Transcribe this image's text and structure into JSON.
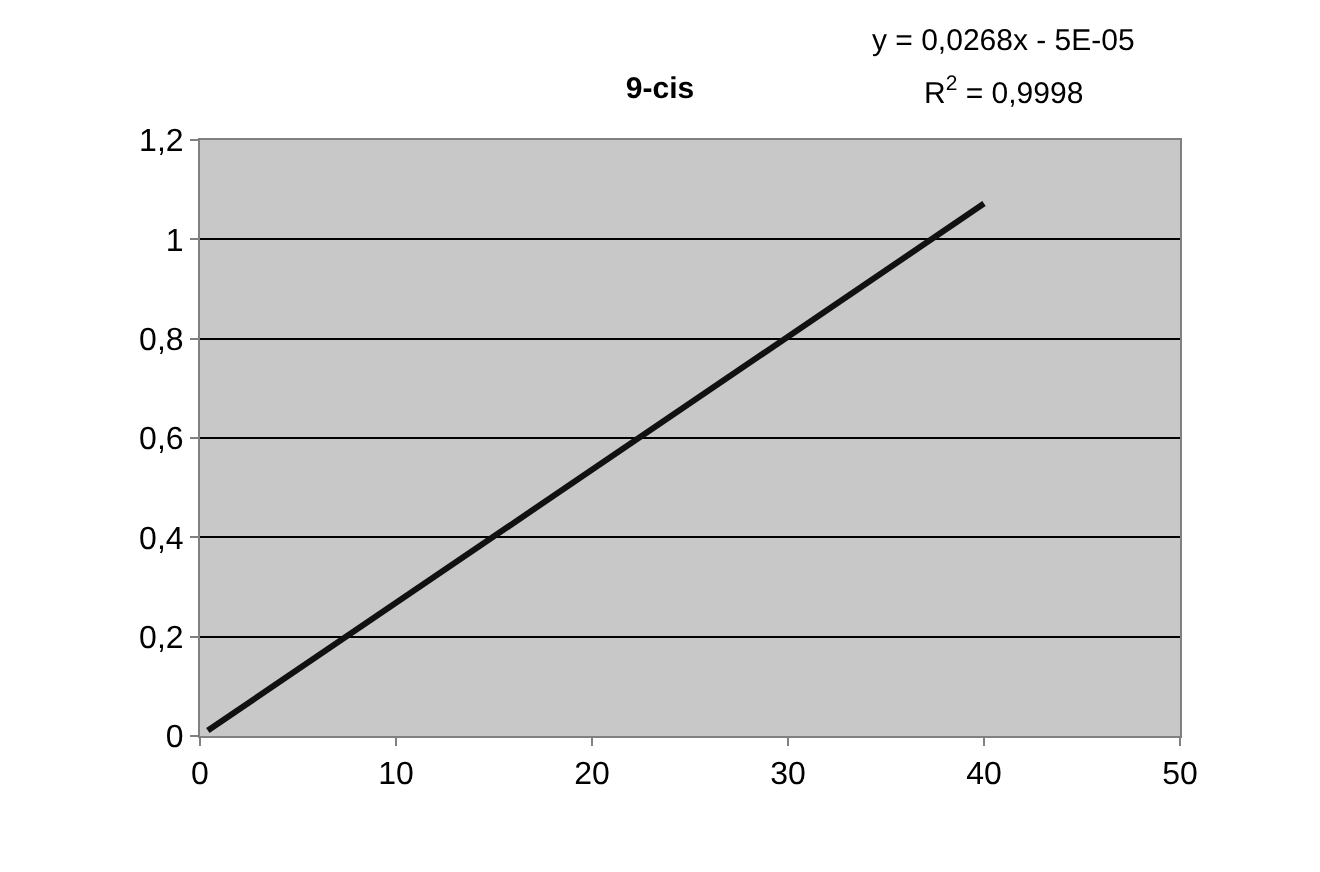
{
  "chart_data": {
    "type": "line",
    "title": "9-cis",
    "annotations": [
      "y = 0,0268x - 5E-05",
      "R$^{2}$ = 0,9998"
    ],
    "series": [
      {
        "color": "#111111",
        "x": [
          0.4,
          40
        ],
        "values": [
          0.011,
          1.072
        ]
      }
    ],
    "xlim": [
      0,
      50
    ],
    "xticks": [
      0,
      10,
      20,
      30,
      40,
      50
    ],
    "ylim": [
      0,
      1.2
    ],
    "yticks": [
      0,
      {
        "value": 0.2,
        "label": "0,2"
      },
      {
        "value": 0.4,
        "label": "0,4"
      },
      {
        "value": 0.6,
        "label": "0,6"
      },
      {
        "value": 0.8,
        "label": "0,8"
      },
      1,
      {
        "value": 1.2,
        "label": "1,2"
      }
    ],
    "grid": "y",
    "marker": "none",
    "line_style": "solid"
  }
}
